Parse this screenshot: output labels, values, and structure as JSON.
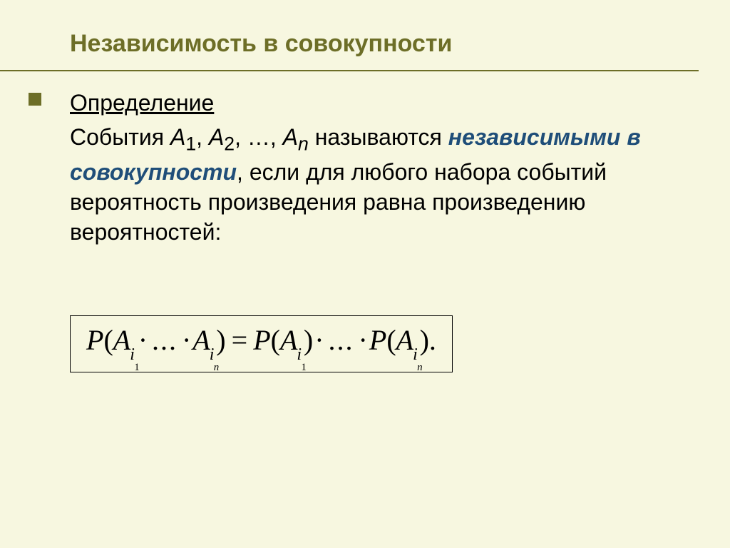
{
  "colors": {
    "background": "#f7f7e0",
    "accent": "#6d6e27",
    "highlight": "#1f4e79",
    "text": "#000000",
    "border": "#000000"
  },
  "title": "Независимость в совокупности",
  "definition": {
    "label": "Определение",
    "pre": "События ",
    "events": {
      "A1": "A",
      "s1": "1",
      "A2": "A",
      "s2": "2",
      "An": "A",
      "sn": "n"
    },
    "mid": " называются ",
    "highlight": "независимыми в совокупности",
    "post": ", если для любого набора событий вероятность произведения равна произведению вероятностей:"
  },
  "formula": {
    "P": "P",
    "A": "A",
    "i": "i",
    "one": "1",
    "n": "n",
    "lp": "(",
    "rp": ")",
    "eq": "=",
    "cdot": "·",
    "dots": "...",
    "period": "."
  }
}
